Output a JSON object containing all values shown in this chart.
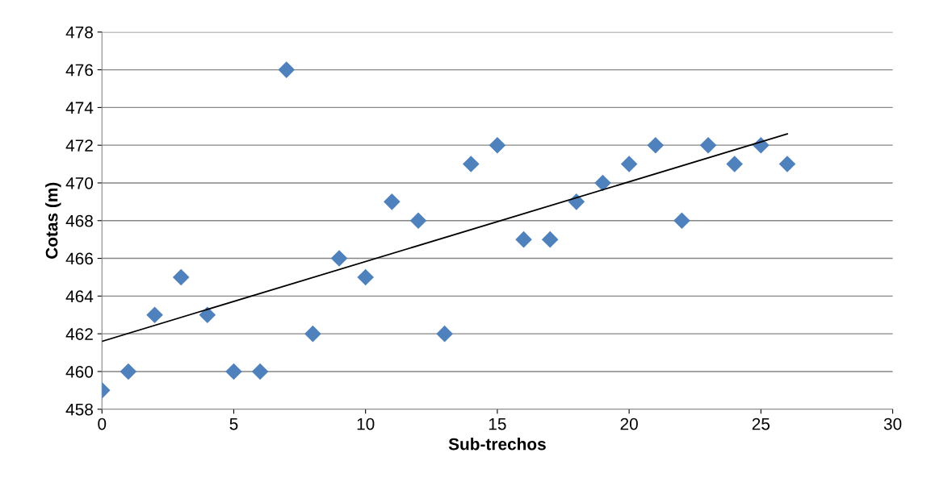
{
  "chart_data": {
    "type": "scatter",
    "xlabel": "Sub-trechos",
    "ylabel": "Cotas (m)",
    "x": [
      0,
      1,
      2,
      3,
      4,
      5,
      6,
      7,
      8,
      9,
      10,
      11,
      12,
      13,
      14,
      15,
      16,
      17,
      18,
      19,
      20,
      21,
      22,
      23,
      24,
      25,
      26
    ],
    "series": [
      {
        "color": "#4f81bd",
        "marker": "diamond",
        "values": [
          459,
          460,
          463,
          465,
          463,
          460,
          460,
          476,
          462,
          466,
          465,
          469,
          468,
          462,
          471,
          472,
          467,
          467,
          469,
          470,
          471,
          472,
          468,
          472,
          471,
          472,
          471
        ]
      },
      {
        "type": "line",
        "color": "#000000",
        "marker": "none",
        "line_style": "solid",
        "x": [
          0,
          26
        ],
        "values": [
          461.6,
          472.6
        ]
      }
    ],
    "xlim": [
      0,
      30
    ],
    "xticks": [
      0,
      5,
      10,
      15,
      20,
      25,
      30
    ],
    "ylim": [
      458,
      478
    ],
    "yticks": [
      458,
      460,
      462,
      464,
      466,
      468,
      470,
      472,
      474,
      476,
      478
    ],
    "grid": "y",
    "legend": false
  }
}
